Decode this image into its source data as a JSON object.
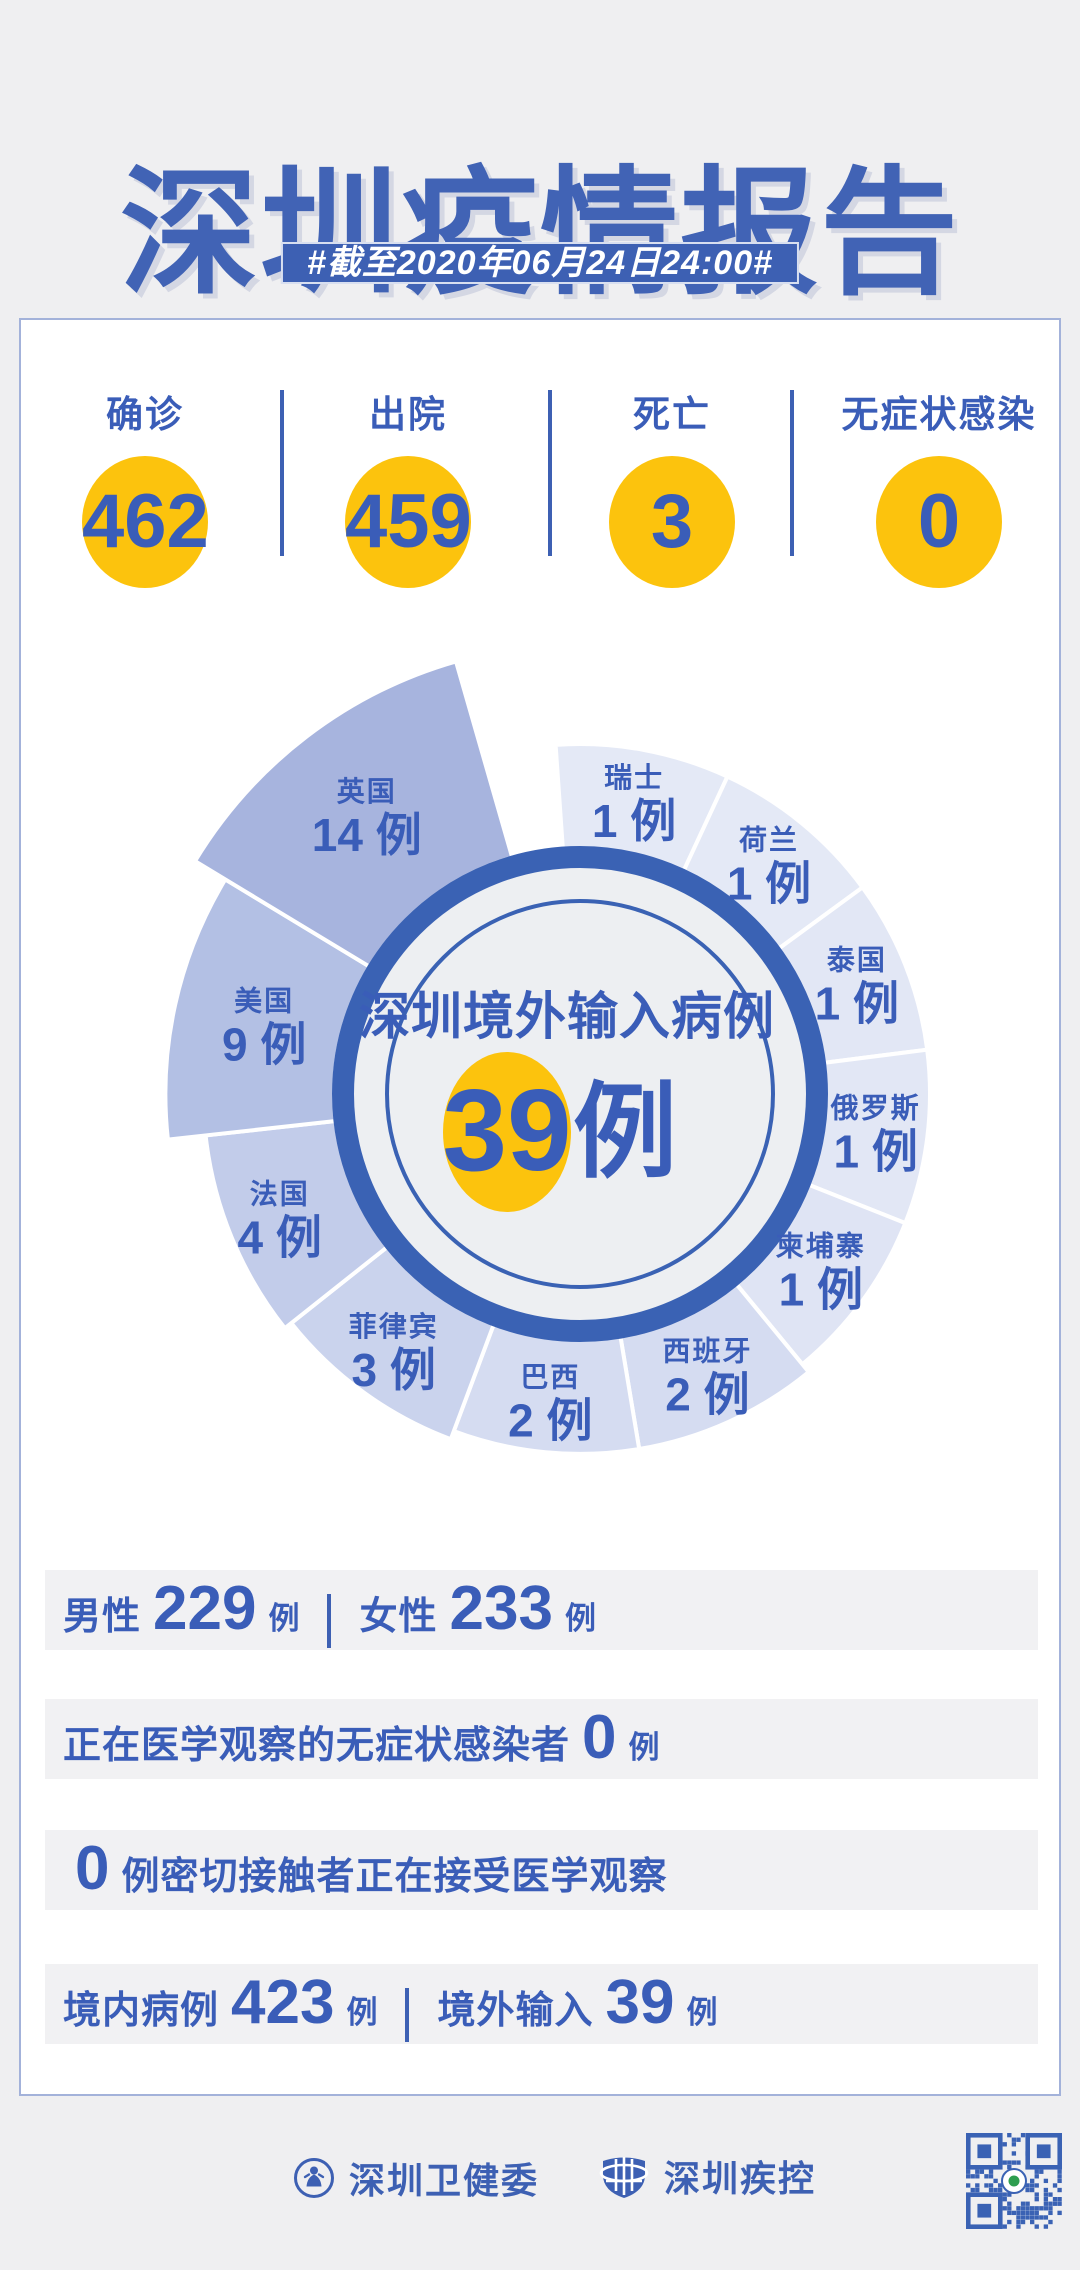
{
  "title": "深圳疫情报告",
  "subtitle": "#截至2020年06月24日24:00#",
  "stats": {
    "items": [
      {
        "label": "确诊",
        "value": "462"
      },
      {
        "label": "出院",
        "value": "459"
      },
      {
        "label": "死亡",
        "value": "3"
      },
      {
        "label": "无症状感染",
        "value": "0"
      }
    ]
  },
  "chart_data": {
    "type": "pie",
    "subtype": "nightingale-rose",
    "center_title": "深圳境外输入病例",
    "center_value": "39",
    "center_unit": "例",
    "unit": "例",
    "total": 39,
    "legend_position": "on-slice",
    "start_angle_deg": -4,
    "top_gap_deg": 12,
    "categories": [
      "瑞士",
      "荷兰",
      "泰国",
      "俄罗斯",
      "柬埔寨",
      "西班牙",
      "巴西",
      "菲律宾",
      "法国",
      "美国",
      "英国"
    ],
    "values": [
      1,
      1,
      1,
      1,
      1,
      2,
      2,
      3,
      4,
      9,
      14
    ],
    "slices": [
      {
        "name": "瑞士",
        "value": 1,
        "color": "#e4e9f6"
      },
      {
        "name": "荷兰",
        "value": 1,
        "color": "#e4e9f6"
      },
      {
        "name": "泰国",
        "value": 1,
        "color": "#e2e7f5"
      },
      {
        "name": "俄罗斯",
        "value": 1,
        "color": "#e2e7f5"
      },
      {
        "name": "柬埔寨",
        "value": 1,
        "color": "#dfe4f4"
      },
      {
        "name": "西班牙",
        "value": 2,
        "color": "#d5dcf1"
      },
      {
        "name": "巴西",
        "value": 2,
        "color": "#d5dcf1"
      },
      {
        "name": "菲律宾",
        "value": 3,
        "color": "#cad3ed"
      },
      {
        "name": "法国",
        "value": 4,
        "color": "#c2ccea"
      },
      {
        "name": "美国",
        "value": 9,
        "color": "#b3c0e4"
      },
      {
        "name": "英国",
        "value": 14,
        "color": "#a7b4de"
      }
    ]
  },
  "rows": [
    {
      "parts": [
        {
          "k": "lab",
          "t": "男性"
        },
        {
          "k": "num",
          "t": "229"
        },
        {
          "k": "unit",
          "t": "例"
        },
        {
          "k": "sep",
          "t": ""
        },
        {
          "k": "lab",
          "t": "女性"
        },
        {
          "k": "num",
          "t": "233"
        },
        {
          "k": "unit",
          "t": "例"
        }
      ]
    },
    {
      "parts": [
        {
          "k": "lab",
          "t": "正在医学观察的无症状感染者"
        },
        {
          "k": "num",
          "t": "0"
        },
        {
          "k": "unit",
          "t": "例"
        }
      ]
    },
    {
      "parts": [
        {
          "k": "num",
          "t": "0"
        },
        {
          "k": "lab",
          "t": "例密切接触者正在接受医学观察"
        }
      ]
    },
    {
      "parts": [
        {
          "k": "lab",
          "t": "境内病例"
        },
        {
          "k": "num",
          "t": "423"
        },
        {
          "k": "unit",
          "t": "例"
        },
        {
          "k": "sep",
          "t": ""
        },
        {
          "k": "lab",
          "t": "境外输入"
        },
        {
          "k": "num",
          "t": "39"
        },
        {
          "k": "unit",
          "t": "例"
        }
      ]
    }
  ],
  "footer": {
    "org1": "深圳卫健委",
    "org2": "深圳疾控"
  },
  "colors": {
    "accent_blue": "#3d60b3",
    "text_blue": "#3a5db8",
    "ring_blue": "#3a62b4",
    "yellow": "#fcc30d",
    "page_bg": "#efeff1",
    "card_border": "#a3b2da",
    "row_bg": "#f1f1f3"
  }
}
